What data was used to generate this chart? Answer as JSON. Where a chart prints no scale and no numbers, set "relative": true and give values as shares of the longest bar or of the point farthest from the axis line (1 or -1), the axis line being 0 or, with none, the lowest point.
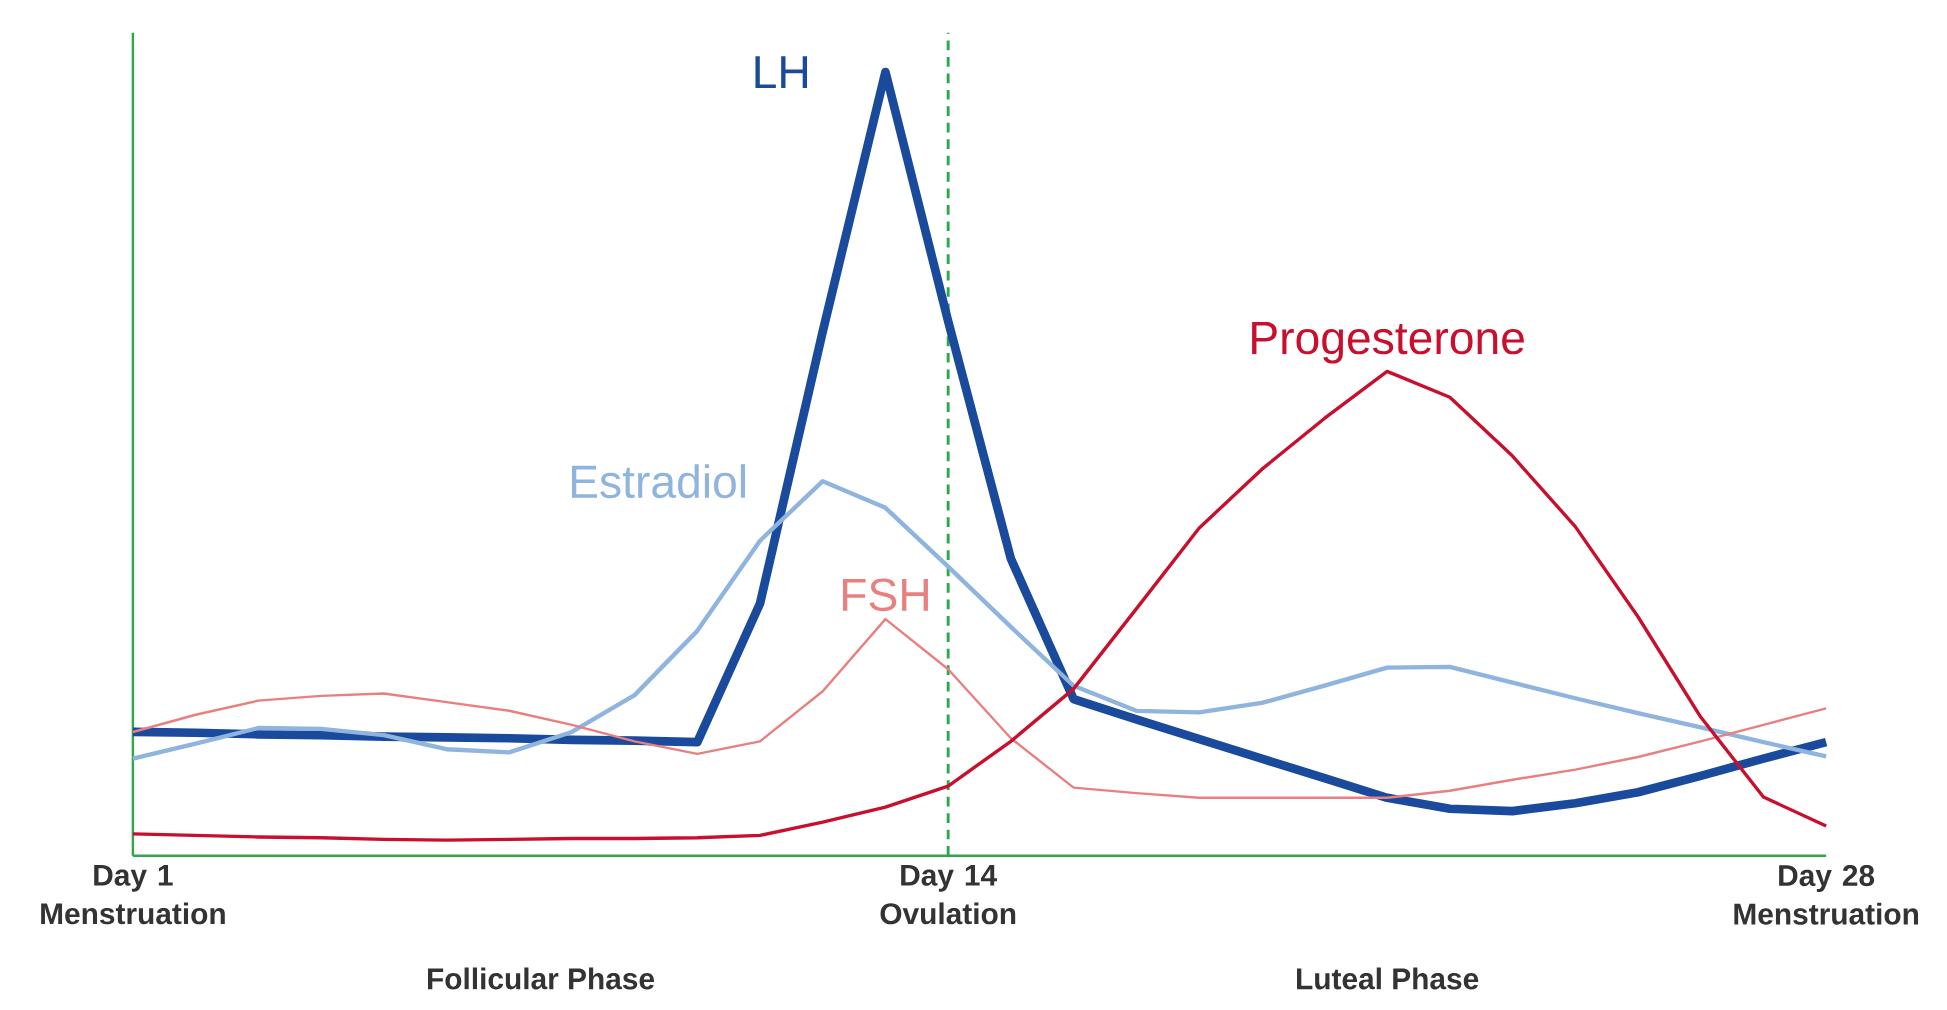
{
  "chart_data": {
    "type": "line",
    "relative": true,
    "tick_labels": "x",
    "categories": [
      "Day 1 Menstruation",
      null,
      null,
      null,
      null,
      null,
      null,
      null,
      null,
      null,
      null,
      null,
      null,
      "Day 14 Ovulation",
      null,
      null,
      null,
      null,
      null,
      null,
      null,
      null,
      null,
      null,
      null,
      null,
      null,
      "Day 28 Menstruation"
    ],
    "series": [
      {
        "name": "LH",
        "color": "#1a4a9c",
        "values": [
          0.158,
          0.157,
          0.155,
          0.154,
          0.152,
          0.151,
          0.15,
          0.148,
          0.147,
          0.145,
          0.322,
          0.669,
          1,
          0.682,
          0.379,
          0.2,
          0.174,
          0.149,
          0.124,
          0.099,
          0.074,
          0.06,
          0.057,
          0.067,
          0.081,
          0.102,
          0.124,
          0.145
        ]
      },
      {
        "name": "Estradiol",
        "color": "#8fb4de",
        "values": [
          0.124,
          0.143,
          0.163,
          0.162,
          0.154,
          0.136,
          0.132,
          0.158,
          0.205,
          0.287,
          0.402,
          0.478,
          0.444,
          0.369,
          0.292,
          0.217,
          0.185,
          0.183,
          0.195,
          0.217,
          0.24,
          0.241,
          0.221,
          0.201,
          0.182,
          0.164,
          0.145,
          0.127
        ]
      },
      {
        "name": "FSH",
        "color": "#e88080",
        "values": [
          0.158,
          0.18,
          0.198,
          0.204,
          0.207,
          0.196,
          0.185,
          0.167,
          0.146,
          0.13,
          0.146,
          0.21,
          0.302,
          0.238,
          0.15,
          0.087,
          0.08,
          0.074,
          0.074,
          0.074,
          0.074,
          0.083,
          0.097,
          0.11,
          0.126,
          0.146,
          0.167,
          0.188
        ]
      },
      {
        "name": "Progesterone",
        "color": "#c8102e",
        "values": [
          0.028,
          0.026,
          0.024,
          0.023,
          0.021,
          0.02,
          0.021,
          0.022,
          0.022,
          0.023,
          0.026,
          0.043,
          0.062,
          0.089,
          0.146,
          0.213,
          0.315,
          0.418,
          0.493,
          0.558,
          0.618,
          0.585,
          0.51,
          0.42,
          0.305,
          0.177,
          0.075,
          0.038
        ]
      }
    ],
    "ref_lines": [
      {
        "axis": "x",
        "value": "Day 14 Ovulation",
        "color": "#2ea84a",
        "line_style": "dashed"
      }
    ],
    "annotations": [
      "Follicular Phase",
      "Luteal Phase"
    ]
  }
}
